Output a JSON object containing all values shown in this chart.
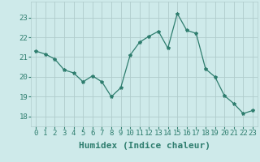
{
  "x": [
    0,
    1,
    2,
    3,
    4,
    5,
    6,
    7,
    8,
    9,
    10,
    11,
    12,
    13,
    14,
    15,
    16,
    17,
    18,
    19,
    20,
    21,
    22,
    23
  ],
  "y": [
    21.3,
    21.15,
    20.9,
    20.35,
    20.2,
    19.75,
    20.05,
    19.75,
    19.0,
    19.45,
    21.1,
    21.75,
    22.05,
    22.3,
    21.45,
    23.2,
    22.35,
    22.2,
    20.4,
    20.0,
    19.05,
    18.65,
    18.15,
    18.3
  ],
  "line_color": "#2e7d6e",
  "marker": "*",
  "marker_size": 3,
  "bg_color": "#ceeaea",
  "grid_color": "#b0cccc",
  "xlabel": "Humidex (Indice chaleur)",
  "ylim": [
    17.5,
    23.8
  ],
  "xlim": [
    -0.5,
    23.5
  ],
  "yticks": [
    18,
    19,
    20,
    21,
    22,
    23
  ],
  "xticks": [
    0,
    1,
    2,
    3,
    4,
    5,
    6,
    7,
    8,
    9,
    10,
    11,
    12,
    13,
    14,
    15,
    16,
    17,
    18,
    19,
    20,
    21,
    22,
    23
  ],
  "tick_label_size": 6.5,
  "xlabel_size": 8,
  "ylabel_size": 6.5
}
